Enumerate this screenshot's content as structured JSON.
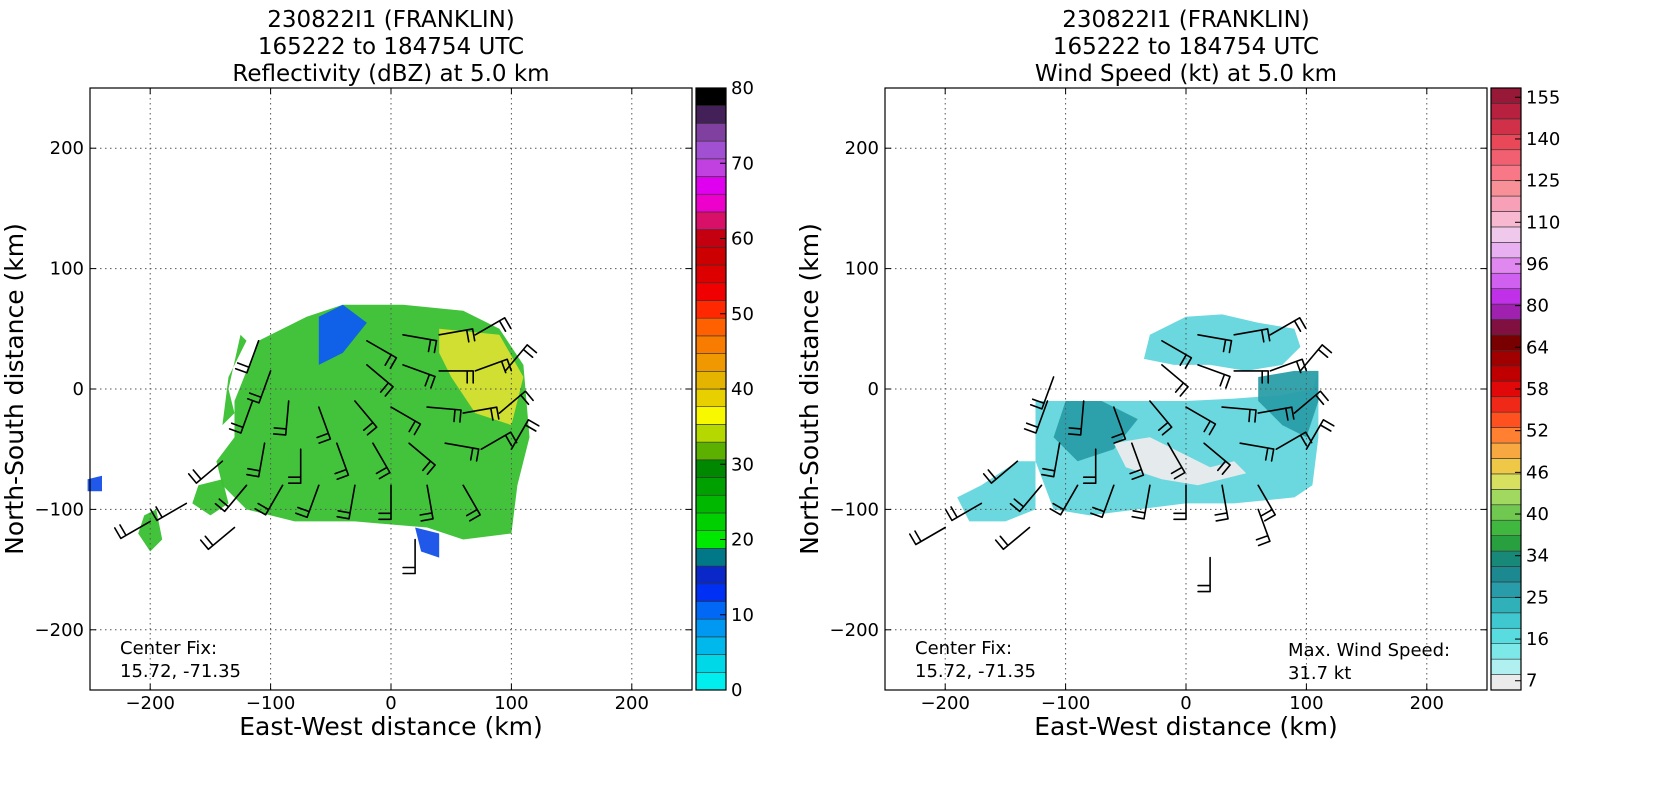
{
  "chart_data": [
    {
      "type": "heatmap",
      "title": [
        "230822I1 (FRANKLIN)",
        "165222 to 184754 UTC",
        "Reflectivity (dBZ) at 5.0 km"
      ],
      "xlabel": "East-West distance (km)",
      "ylabel": "North-South distance (km)",
      "xlim": [
        -250,
        250
      ],
      "ylim": [
        -250,
        250
      ],
      "xticks": [
        -200,
        -100,
        0,
        100,
        200
      ],
      "yticks": [
        -200,
        -100,
        0,
        100,
        200
      ],
      "grid": true,
      "colorbar": {
        "ticks": [
          "0",
          "10",
          "20",
          "30",
          "40",
          "50",
          "60",
          "70",
          "80"
        ],
        "colors": [
          "#00eeee",
          "#00d8e8",
          "#00b8ec",
          "#0098f0",
          "#0068f4",
          "#0030f4",
          "#0a28c8",
          "#007888",
          "#00e800",
          "#00d000",
          "#00b800",
          "#00a000",
          "#008800",
          "#5cb000",
          "#b4d800",
          "#f8f800",
          "#e8d000",
          "#e4b400",
          "#f09800",
          "#f87c00",
          "#ff6000",
          "#ff2800",
          "#f00000",
          "#dc0000",
          "#cc0000",
          "#c40010",
          "#d81068",
          "#ee00cc",
          "#e000f0",
          "#c040e0",
          "#a050d0",
          "#8040a0",
          "#442058",
          "#000000"
        ]
      },
      "annotations": [
        "Center Fix:",
        "15.72, -71.35"
      ],
      "field_regions": [
        {
          "value": "dBZ 15-40 (green/yellow)",
          "polygon_km": [
            [
              -130,
              -10
            ],
            [
              -110,
              40
            ],
            [
              -70,
              60
            ],
            [
              -40,
              70
            ],
            [
              10,
              70
            ],
            [
              60,
              65
            ],
            [
              90,
              50
            ],
            [
              110,
              20
            ],
            [
              115,
              -40
            ],
            [
              105,
              -80
            ],
            [
              100,
              -120
            ],
            [
              60,
              -125
            ],
            [
              30,
              -115
            ],
            [
              -30,
              -110
            ],
            [
              -80,
              -110
            ],
            [
              -120,
              -100
            ],
            [
              -140,
              -80
            ],
            [
              -145,
              -60
            ],
            [
              -130,
              -40
            ]
          ]
        },
        {
          "value": "dBZ 35-40 (yellow core)",
          "polygon_km": [
            [
              40,
              50
            ],
            [
              90,
              45
            ],
            [
              110,
              10
            ],
            [
              100,
              -30
            ],
            [
              70,
              -20
            ],
            [
              50,
              10
            ],
            [
              40,
              30
            ]
          ]
        },
        {
          "value": "dBZ 5-15 (blue edges)",
          "polygon_km": [
            [
              -60,
              60
            ],
            [
              -40,
              70
            ],
            [
              -20,
              55
            ],
            [
              -40,
              30
            ],
            [
              -60,
              20
            ]
          ]
        },
        {
          "value": "dBZ 20-30 (outer band)",
          "polygon_km": [
            [
              -125,
              45
            ],
            [
              -135,
              0
            ],
            [
              -130,
              -20
            ],
            [
              -140,
              -30
            ],
            [
              -135,
              10
            ],
            [
              -120,
              40
            ]
          ]
        },
        {
          "value": "dBZ 20-30 (southwest cells)",
          "polygon_km": [
            [
              -205,
              -105
            ],
            [
              -195,
              -100
            ],
            [
              -190,
              -125
            ],
            [
              -200,
              -135
            ],
            [
              -210,
              -120
            ]
          ]
        },
        {
          "value": "dBZ 20-30 (southwest cells)",
          "polygon_km": [
            [
              -160,
              -80
            ],
            [
              -140,
              -75
            ],
            [
              -135,
              -95
            ],
            [
              -150,
              -105
            ],
            [
              -165,
              -95
            ]
          ]
        },
        {
          "value": "dBZ 10-20 (isolated)",
          "polygon_km": [
            [
              20,
              -115
            ],
            [
              40,
              -120
            ],
            [
              40,
              -140
            ],
            [
              25,
              -135
            ]
          ]
        },
        {
          "value": "dBZ 10-20 (isolated)",
          "polygon_km": [
            [
              -252,
              -75
            ],
            [
              -240,
              -72
            ],
            [
              -240,
              -85
            ],
            [
              -252,
              -85
            ]
          ]
        }
      ],
      "wind_barbs": [
        {
          "x": -115,
          "y": -10,
          "dir": 200
        },
        {
          "x": -85,
          "y": -10,
          "dir": 185
        },
        {
          "x": -60,
          "y": -15,
          "dir": 160
        },
        {
          "x": -30,
          "y": -10,
          "dir": 140
        },
        {
          "x": 0,
          "y": -15,
          "dir": 120
        },
        {
          "x": 30,
          "y": -15,
          "dir": 95
        },
        {
          "x": 60,
          "y": -20,
          "dir": 80
        },
        {
          "x": 90,
          "y": -20,
          "dir": 50
        },
        {
          "x": -105,
          "y": -45,
          "dir": 190
        },
        {
          "x": -75,
          "y": -50,
          "dir": 180
        },
        {
          "x": -45,
          "y": -45,
          "dir": 160
        },
        {
          "x": -15,
          "y": -45,
          "dir": 150
        },
        {
          "x": 15,
          "y": -45,
          "dir": 130
        },
        {
          "x": 45,
          "y": -45,
          "dir": 100
        },
        {
          "x": 75,
          "y": -50,
          "dir": 60
        },
        {
          "x": 100,
          "y": -50,
          "dir": 30
        },
        {
          "x": -120,
          "y": -80,
          "dir": 220
        },
        {
          "x": -90,
          "y": -80,
          "dir": 210
        },
        {
          "x": -60,
          "y": -80,
          "dir": 200
        },
        {
          "x": -30,
          "y": -80,
          "dir": 190
        },
        {
          "x": 0,
          "y": -80,
          "dir": 180
        },
        {
          "x": 30,
          "y": -80,
          "dir": 170
        },
        {
          "x": 60,
          "y": -80,
          "dir": 150
        },
        {
          "x": -20,
          "y": 40,
          "dir": 120
        },
        {
          "x": 10,
          "y": 45,
          "dir": 100
        },
        {
          "x": 40,
          "y": 45,
          "dir": 80
        },
        {
          "x": 70,
          "y": 45,
          "dir": 60
        },
        {
          "x": -20,
          "y": 20,
          "dir": 130
        },
        {
          "x": 10,
          "y": 20,
          "dir": 110
        },
        {
          "x": 40,
          "y": 15,
          "dir": 90
        },
        {
          "x": 70,
          "y": 15,
          "dir": 70
        },
        {
          "x": 95,
          "y": 15,
          "dir": 40
        },
        {
          "x": -110,
          "y": 40,
          "dir": 200
        },
        {
          "x": -100,
          "y": 15,
          "dir": 200
        },
        {
          "x": -140,
          "y": -60,
          "dir": 230
        },
        {
          "x": -170,
          "y": -95,
          "dir": 240
        },
        {
          "x": -200,
          "y": -110,
          "dir": 240
        },
        {
          "x": -130,
          "y": -115,
          "dir": 230
        },
        {
          "x": 20,
          "y": -125,
          "dir": 180
        }
      ]
    },
    {
      "type": "heatmap",
      "title": [
        "230822I1 (FRANKLIN)",
        "165222 to 184754 UTC",
        "Wind Speed (kt) at 5.0 km"
      ],
      "xlabel": "East-West distance (km)",
      "ylabel": "North-South distance (km)",
      "xlim": [
        -250,
        250
      ],
      "ylim": [
        -250,
        250
      ],
      "xticks": [
        -200,
        -100,
        0,
        100,
        200
      ],
      "yticks": [
        -200,
        -100,
        0,
        100,
        200
      ],
      "grid": true,
      "colorbar": {
        "ticks": [
          "7",
          "16",
          "25",
          "34",
          "40",
          "46",
          "52",
          "58",
          "64",
          "80",
          "96",
          "110",
          "125",
          "140",
          "155"
        ],
        "colors": [
          "#ebebeb",
          "#b0f0f0",
          "#7ce8e8",
          "#58dce0",
          "#40c8d0",
          "#30b0b8",
          "#289ca8",
          "#1c8890",
          "#188878",
          "#28a040",
          "#40b840",
          "#70c850",
          "#a0d860",
          "#d8e060",
          "#f0c848",
          "#f8a840",
          "#ff8030",
          "#ff5020",
          "#f02818",
          "#e00808",
          "#c00000",
          "#a00000",
          "#780000",
          "#801040",
          "#a020b0",
          "#c030e8",
          "#d060f0",
          "#e088f0",
          "#e8b0f0",
          "#f0c8ec",
          "#f8b8d0",
          "#f8a0b8",
          "#f89098",
          "#f87888",
          "#f06070",
          "#e84858",
          "#d03048",
          "#b82040",
          "#981838"
        ]
      },
      "annotations": [
        "Center Fix:",
        "15.72, -71.35",
        "Max. Wind Speed:",
        "31.7 kt"
      ],
      "field_regions": [
        {
          "value": "kt 10-20 (light cyan)",
          "polygon_km": [
            [
              -125,
              -10
            ],
            [
              -100,
              -10
            ],
            [
              -40,
              -10
            ],
            [
              0,
              -10
            ],
            [
              40,
              -8
            ],
            [
              80,
              -5
            ],
            [
              105,
              0
            ],
            [
              110,
              15
            ],
            [
              110,
              -40
            ],
            [
              105,
              -80
            ],
            [
              90,
              -90
            ],
            [
              40,
              -95
            ],
            [
              0,
              -95
            ],
            [
              -40,
              -100
            ],
            [
              -80,
              -105
            ],
            [
              -110,
              -100
            ],
            [
              -125,
              -60
            ]
          ]
        },
        {
          "value": "kt 10-20 (light cyan)",
          "polygon_km": [
            [
              -35,
              25
            ],
            [
              -30,
              45
            ],
            [
              0,
              60
            ],
            [
              30,
              62
            ],
            [
              60,
              55
            ],
            [
              90,
              50
            ],
            [
              95,
              35
            ],
            [
              80,
              20
            ],
            [
              50,
              15
            ],
            [
              20,
              20
            ],
            [
              -10,
              20
            ]
          ]
        },
        {
          "value": "kt 20-30 (teal core)",
          "polygon_km": [
            [
              -100,
              -10
            ],
            [
              -70,
              -10
            ],
            [
              -40,
              -25
            ],
            [
              -60,
              -50
            ],
            [
              -90,
              -60
            ],
            [
              -110,
              -40
            ]
          ]
        },
        {
          "value": "kt 20-30 (teal core)",
          "polygon_km": [
            [
              60,
              10
            ],
            [
              90,
              15
            ],
            [
              110,
              15
            ],
            [
              110,
              -10
            ],
            [
              100,
              -40
            ],
            [
              80,
              -30
            ],
            [
              60,
              -10
            ]
          ]
        },
        {
          "value": "kt <10 (near white)",
          "polygon_km": [
            [
              -60,
              -45
            ],
            [
              -30,
              -40
            ],
            [
              0,
              -55
            ],
            [
              20,
              -65
            ],
            [
              40,
              -60
            ],
            [
              50,
              -70
            ],
            [
              10,
              -80
            ],
            [
              -20,
              -75
            ],
            [
              -50,
              -65
            ]
          ]
        },
        {
          "value": "kt 10-20 (southwest band)",
          "polygon_km": [
            [
              -170,
              -80
            ],
            [
              -140,
              -60
            ],
            [
              -125,
              -60
            ],
            [
              -125,
              -100
            ],
            [
              -150,
              -110
            ],
            [
              -180,
              -110
            ],
            [
              -190,
              -90
            ]
          ]
        }
      ],
      "wind_barbs": [
        {
          "x": -115,
          "y": -10,
          "dir": 200
        },
        {
          "x": -85,
          "y": -10,
          "dir": 185
        },
        {
          "x": -60,
          "y": -15,
          "dir": 160
        },
        {
          "x": -30,
          "y": -10,
          "dir": 140
        },
        {
          "x": 0,
          "y": -15,
          "dir": 120
        },
        {
          "x": 30,
          "y": -15,
          "dir": 95
        },
        {
          "x": 60,
          "y": -20,
          "dir": 80
        },
        {
          "x": 90,
          "y": -20,
          "dir": 50
        },
        {
          "x": -105,
          "y": -45,
          "dir": 190
        },
        {
          "x": -75,
          "y": -50,
          "dir": 180
        },
        {
          "x": -45,
          "y": -45,
          "dir": 160
        },
        {
          "x": -15,
          "y": -45,
          "dir": 150
        },
        {
          "x": 15,
          "y": -45,
          "dir": 130
        },
        {
          "x": 45,
          "y": -45,
          "dir": 100
        },
        {
          "x": 75,
          "y": -50,
          "dir": 60
        },
        {
          "x": 100,
          "y": -50,
          "dir": 30
        },
        {
          "x": -120,
          "y": -80,
          "dir": 220
        },
        {
          "x": -90,
          "y": -80,
          "dir": 210
        },
        {
          "x": -60,
          "y": -80,
          "dir": 200
        },
        {
          "x": -30,
          "y": -80,
          "dir": 190
        },
        {
          "x": 0,
          "y": -80,
          "dir": 180
        },
        {
          "x": 30,
          "y": -80,
          "dir": 170
        },
        {
          "x": 60,
          "y": -80,
          "dir": 150
        },
        {
          "x": -20,
          "y": 40,
          "dir": 120
        },
        {
          "x": 10,
          "y": 45,
          "dir": 100
        },
        {
          "x": 40,
          "y": 45,
          "dir": 80
        },
        {
          "x": 70,
          "y": 45,
          "dir": 60
        },
        {
          "x": -20,
          "y": 20,
          "dir": 130
        },
        {
          "x": 10,
          "y": 20,
          "dir": 110
        },
        {
          "x": 40,
          "y": 15,
          "dir": 90
        },
        {
          "x": 70,
          "y": 15,
          "dir": 70
        },
        {
          "x": 95,
          "y": 15,
          "dir": 40
        },
        {
          "x": -110,
          "y": 10,
          "dir": 200
        },
        {
          "x": -140,
          "y": -60,
          "dir": 230
        },
        {
          "x": -170,
          "y": -95,
          "dir": 240
        },
        {
          "x": -200,
          "y": -115,
          "dir": 240
        },
        {
          "x": -130,
          "y": -115,
          "dir": 230
        },
        {
          "x": 20,
          "y": -140,
          "dir": 180
        },
        {
          "x": 60,
          "y": -100,
          "dir": 160
        }
      ]
    }
  ]
}
